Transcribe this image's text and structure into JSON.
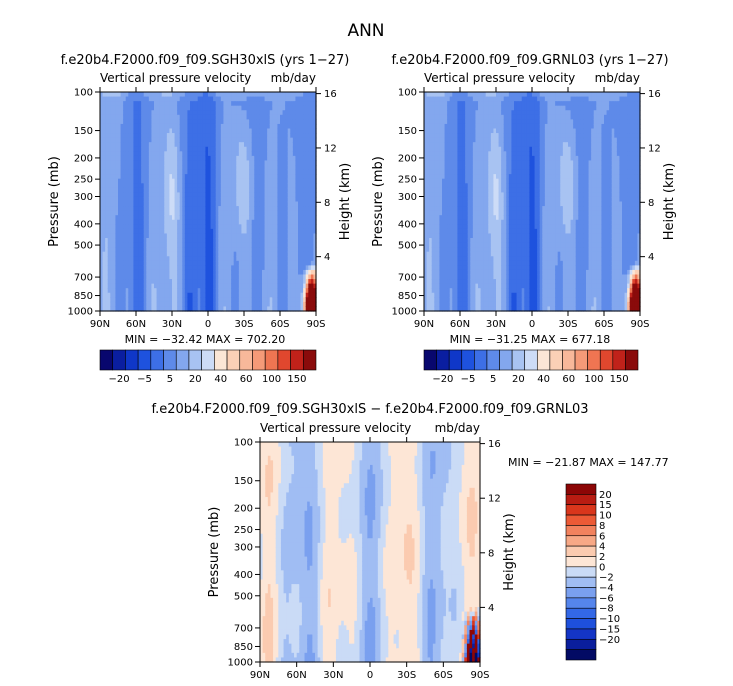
{
  "figure": {
    "title": "ANN"
  },
  "colors": {
    "abs_scale": [
      "#08076e",
      "#0a1ea0",
      "#0f37c8",
      "#1e52de",
      "#3d6fe6",
      "#5e8ae9",
      "#83a7ee",
      "#a8c3f2",
      "#cddcf7",
      "#fbe6d6",
      "#fbd0b6",
      "#f8b89a",
      "#f59a78",
      "#ef7552",
      "#e0472e",
      "#c0221a",
      "#8a0b0b"
    ],
    "diff_scale": [
      "#020a64",
      "#0a1e9c",
      "#1435c6",
      "#1e50dc",
      "#3368e6",
      "#5585ec",
      "#7aa0ef",
      "#a0bdf3",
      "#cadbf6",
      "#fde6d6",
      "#fbcbb0",
      "#f7a886",
      "#f2825e",
      "#ec5a36",
      "#d9361c",
      "#b81c12",
      "#8c0606"
    ]
  },
  "chart_data": [
    {
      "type": "heatmap",
      "panel_title": "f.e20b4.F2000.f09_f09.SGH30xlS (yrs 1−27)",
      "subtitle_left": "Vertical pressure velocity",
      "subtitle_right": "mb/day",
      "ylabel": "Pressure (mb)",
      "ylabel_right": "Height (km)",
      "x_ticks": [
        "90N",
        "60N",
        "30N",
        "0",
        "30S",
        "60S",
        "90S"
      ],
      "y_ticks": [
        "100",
        "150",
        "200",
        "250",
        "300",
        "400",
        "500",
        "700",
        "850",
        "1000"
      ],
      "y_ticks_right": [
        "16",
        "12",
        "8",
        "4"
      ],
      "stats": "MIN = −32.42   MAX = 702.20",
      "min": -32.42,
      "max": 702.2,
      "colorbar_labels": [
        "−20",
        "−5",
        "5",
        "20",
        "40",
        "60",
        "100",
        "150"
      ]
    },
    {
      "type": "heatmap",
      "panel_title": "f.e20b4.F2000.f09_f09.GRNL03 (yrs 1−27)",
      "subtitle_left": "Vertical pressure velocity",
      "subtitle_right": "mb/day",
      "ylabel": "Pressure (mb)",
      "ylabel_right": "Height (km)",
      "x_ticks": [
        "90N",
        "60N",
        "30N",
        "0",
        "30S",
        "60S",
        "90S"
      ],
      "y_ticks": [
        "100",
        "150",
        "200",
        "250",
        "300",
        "400",
        "500",
        "700",
        "850",
        "1000"
      ],
      "y_ticks_right": [
        "16",
        "12",
        "8",
        "4"
      ],
      "stats": "MIN = −31.25   MAX = 677.18",
      "min": -31.25,
      "max": 677.18,
      "colorbar_labels": [
        "−20",
        "−5",
        "5",
        "20",
        "40",
        "60",
        "100",
        "150"
      ]
    },
    {
      "type": "heatmap",
      "panel_title": "f.e20b4.F2000.f09_f09.SGH30xlS − f.e20b4.F2000.f09_f09.GRNL03",
      "subtitle_left": "Vertical pressure velocity",
      "subtitle_right": "mb/day",
      "ylabel": "Pressure (mb)",
      "ylabel_right": "Height (km)",
      "x_ticks": [
        "90N",
        "60N",
        "30N",
        "0",
        "30S",
        "60S",
        "90S"
      ],
      "y_ticks": [
        "100",
        "150",
        "200",
        "250",
        "300",
        "400",
        "500",
        "700",
        "850",
        "1000"
      ],
      "y_ticks_right": [
        "16",
        "12",
        "8",
        "4"
      ],
      "stats": "MIN = −21.87   MAX = 147.77",
      "min": -21.87,
      "max": 147.77,
      "colorbar_labels": [
        "20",
        "15",
        "10",
        "8",
        "6",
        "4",
        "2",
        "0",
        "−2",
        "−4",
        "−6",
        "−8",
        "−10",
        "−15",
        "−20"
      ]
    }
  ]
}
